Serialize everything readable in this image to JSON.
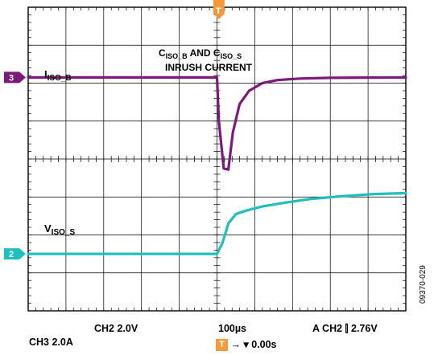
{
  "chart_data": {
    "type": "line",
    "title_prefix_1": "C",
    "title_sub_1": "ISO_B",
    "title_and": " AND C",
    "title_sub_2": "ISO_S",
    "title_line_2": "INRUSH CURRENT",
    "grid": true,
    "divisions": {
      "x": 10,
      "y": 8
    },
    "trigger_marker": "T",
    "series": [
      {
        "name_main": "I",
        "name_sub": "ISO_B",
        "channel_marker": "3",
        "color": "#7b1a7a",
        "x_div": [
          0,
          5.0,
          5.05,
          5.18,
          5.3,
          5.42,
          5.6,
          5.85,
          6.2,
          6.6,
          7.2,
          8.0,
          10
        ],
        "y_div": [
          2.15,
          2.15,
          1.0,
          -0.25,
          -0.28,
          0.7,
          1.45,
          1.8,
          2.0,
          2.08,
          2.12,
          2.14,
          2.15
        ]
      },
      {
        "name_main": "V",
        "name_sub": "ISO_S",
        "channel_marker": "2",
        "color": "#1fbfbf",
        "x_div": [
          0,
          5.0,
          5.15,
          5.3,
          5.5,
          5.8,
          6.2,
          6.8,
          7.5,
          8.3,
          9.2,
          10
        ],
        "y_div": [
          -2.5,
          -2.5,
          -2.2,
          -1.7,
          -1.45,
          -1.35,
          -1.25,
          -1.15,
          -1.05,
          -0.98,
          -0.92,
          -0.9
        ]
      }
    ]
  },
  "readout": {
    "ch2_scale": "CH2  2.0V",
    "ch3_scale": "CH3  2.0A",
    "timebase": "100µs",
    "trigger_setting": "A  CH2  ⫿  2.76V",
    "trigger_offset_prefix": "→ ▾",
    "trigger_offset": "0.00s",
    "trigger_icon": "T"
  },
  "figure_id": "09370-029",
  "colors": {
    "trace_i": "#7b1a7a",
    "trace_v": "#1fbfbf",
    "trigger": "#f59a3b"
  }
}
